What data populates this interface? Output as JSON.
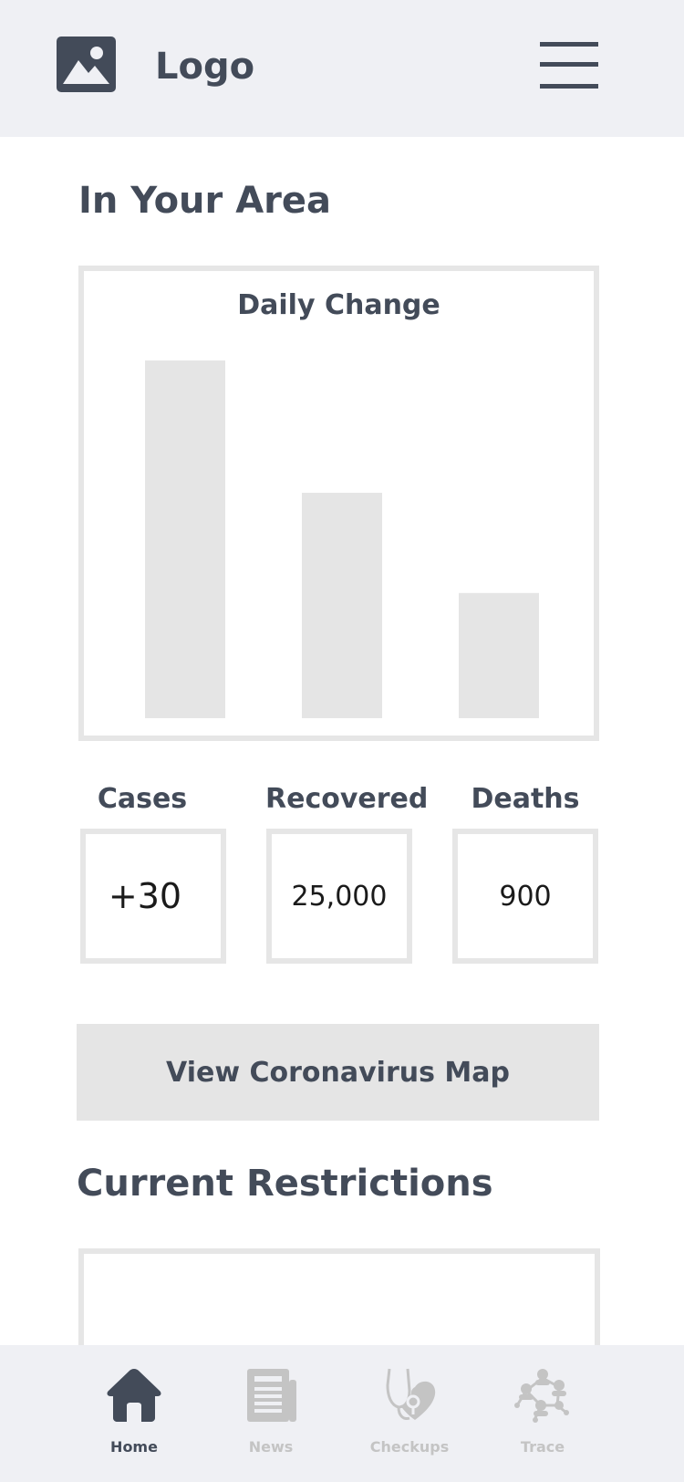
{
  "header": {
    "logo_label": "Logo",
    "logo_icon": "image-icon",
    "menu_icon": "hamburger-menu-icon"
  },
  "area": {
    "title": "In Your Area"
  },
  "chart_data": {
    "type": "bar",
    "title": "Daily Change",
    "categories": [
      "",
      "",
      ""
    ],
    "values": [
      100,
      63,
      35
    ],
    "ylim": [
      0,
      100
    ],
    "xlabel": "",
    "ylabel": "",
    "grid": false,
    "bar_color": "#e5e5e5"
  },
  "stats": {
    "cases_label": "Cases",
    "cases_value": "+30",
    "recovered_label": "Recovered",
    "recovered_value": "25,000",
    "deaths_label": "Deaths",
    "deaths_value": "900"
  },
  "map_button_label": "View Coronavirus Map",
  "restrictions": {
    "title": "Current Restrictions"
  },
  "nav": {
    "items": [
      {
        "label": "Home",
        "icon": "home-icon",
        "active": true
      },
      {
        "label": "News",
        "icon": "newspaper-icon",
        "active": false
      },
      {
        "label": "Checkups",
        "icon": "stethoscope-heart-icon",
        "active": false
      },
      {
        "label": "Trace",
        "icon": "contact-trace-icon",
        "active": false
      }
    ]
  },
  "colors": {
    "primary": "#434b59",
    "header_bg": "#eff0f4",
    "border": "#e6e6e6",
    "inactive": "#c4c4c4"
  }
}
